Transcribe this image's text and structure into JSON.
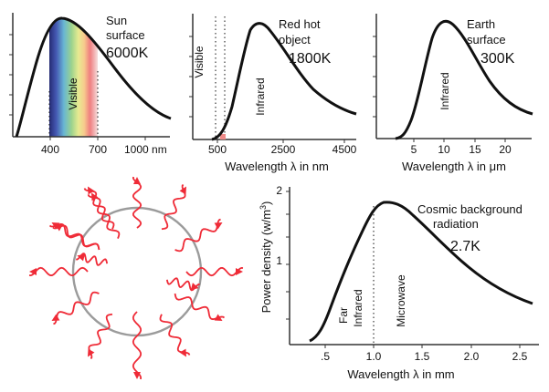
{
  "colors": {
    "curve": "#111111",
    "axis": "#333333",
    "ray": "#ef2b37",
    "circle": "#9b9b9b"
  },
  "panels": {
    "sun": {
      "title_line1": "Sun",
      "title_line2": "surface",
      "temperature": "6000K",
      "x_ticks": [
        "400",
        "700",
        "1000 nm"
      ],
      "region_label": "Visible"
    },
    "red_hot": {
      "title_line1": "Red hot",
      "title_line2": "object",
      "temperature": "1800K",
      "x_ticks": [
        "500",
        "2500",
        "4500"
      ],
      "x_label": "Wavelength λ in nm",
      "region_visible": "Visible",
      "region_infrared": "Infrared"
    },
    "earth": {
      "title_line1": "Earth",
      "title_line2": "surface",
      "temperature": "300K",
      "x_ticks": [
        "5",
        "10",
        "15",
        "20"
      ],
      "x_label": "Wavelength λ in μm",
      "region_infrared": "Infrared"
    },
    "cosmic": {
      "title_line1": "Cosmic background",
      "title_line2": "radiation",
      "temperature": "2.7K",
      "x_ticks": [
        ".5",
        "1.0",
        "1.5",
        "2.0",
        "2.5"
      ],
      "y_ticks": [
        "1",
        "2"
      ],
      "x_label": "Wavelength λ in mm",
      "y_label": "Power density (w/m",
      "y_superscript": "3",
      "y_label_end": ")",
      "region_far": "Far",
      "region_infrared": "Infrared",
      "region_microwave": "Microwave"
    }
  },
  "illustration": {
    "shape": "circle-with-wavy-rays"
  }
}
